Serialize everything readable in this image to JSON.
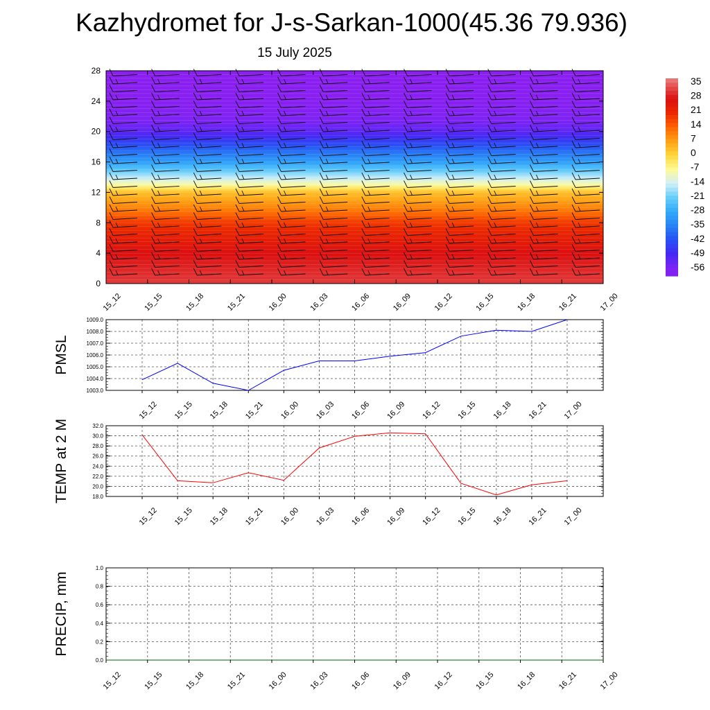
{
  "header": {
    "title": "Kazhydromet for J-s-Sarkan-1000(45.36 79.936)",
    "date": "15 July 2025"
  },
  "time_labels": [
    "15_12",
    "15_15",
    "15_18",
    "15_21",
    "16_00",
    "16_03",
    "16_06",
    "16_09",
    "16_12",
    "16_15",
    "16_18",
    "16_21",
    "17_00"
  ],
  "chart_data": [
    {
      "type": "heatmap",
      "title": "",
      "x": [
        "15_12",
        "15_15",
        "15_18",
        "15_21",
        "16_00",
        "16_03",
        "16_06",
        "16_09",
        "16_12",
        "16_15",
        "16_18",
        "16_21",
        "17_00"
      ],
      "ylabel": "",
      "ylim": [
        0,
        28
      ],
      "yticks": [
        0,
        4,
        8,
        12,
        16,
        20,
        24,
        28
      ],
      "colorbar": {
        "labels": [
          35,
          28,
          21,
          14,
          7,
          0,
          -7,
          -14,
          -21,
          -28,
          -35,
          -42,
          -49,
          -56
        ],
        "range": [
          -60,
          38
        ]
      },
      "vertical_profile": {
        "levels": [
          0,
          4,
          8,
          10,
          12,
          13,
          16,
          20,
          22,
          24,
          28
        ],
        "values": [
          32,
          28,
          19,
          10,
          3,
          -8,
          -30,
          -52,
          -58,
          -62,
          -64
        ]
      },
      "overlay": "wind barbs"
    },
    {
      "type": "line",
      "ylabel": "PMSL",
      "x": [
        "15_12",
        "15_15",
        "15_18",
        "15_21",
        "16_00",
        "16_03",
        "16_06",
        "16_09",
        "16_12",
        "16_15",
        "16_18",
        "16_21",
        "17_00"
      ],
      "ylim": [
        1003.0,
        1009.0
      ],
      "yticks": [
        "1003.0",
        "1004.0",
        "1005.0",
        "1006.0",
        "1007.0",
        "1008.0",
        "1009.0"
      ],
      "grid": true,
      "series": [
        {
          "color": "#0000ff",
          "values": [
            1003.9,
            1005.3,
            1003.6,
            1003.0,
            1004.7,
            1005.5,
            1005.5,
            1005.9,
            1006.2,
            1007.6,
            1008.1,
            1008.0,
            1009.0
          ]
        }
      ]
    },
    {
      "type": "line",
      "ylabel": "TEMP at 2 M",
      "x": [
        "15_12",
        "15_15",
        "15_18",
        "15_21",
        "16_00",
        "16_03",
        "16_06",
        "16_09",
        "16_12",
        "16_15",
        "16_18",
        "16_21",
        "17_00"
      ],
      "ylim": [
        18.0,
        32.0
      ],
      "yticks": [
        "18.0",
        "20.0",
        "22.0",
        "24.0",
        "26.0",
        "28.0",
        "30.0",
        "32.0"
      ],
      "grid": true,
      "series": [
        {
          "color": "#ff0000",
          "values": [
            30.2,
            21.1,
            20.7,
            22.7,
            21.2,
            27.6,
            29.9,
            30.6,
            30.4,
            20.6,
            18.3,
            20.3,
            21.1
          ]
        }
      ]
    },
    {
      "type": "line",
      "ylabel": "PRECIP, mm",
      "x": [
        "15_12",
        "15_15",
        "15_18",
        "15_21",
        "16_00",
        "16_03",
        "16_06",
        "16_09",
        "16_12",
        "16_15",
        "16_18",
        "16_21",
        "17_00"
      ],
      "ylim": [
        0.0,
        1.0
      ],
      "yticks": [
        "0.0",
        "0.2",
        "0.4",
        "0.6",
        "0.8",
        "1.0"
      ],
      "grid": true,
      "series": [
        {
          "color": "#006400",
          "values": [
            0,
            0,
            0,
            0,
            0,
            0,
            0,
            0,
            0,
            0,
            0,
            0,
            0
          ]
        }
      ]
    }
  ]
}
